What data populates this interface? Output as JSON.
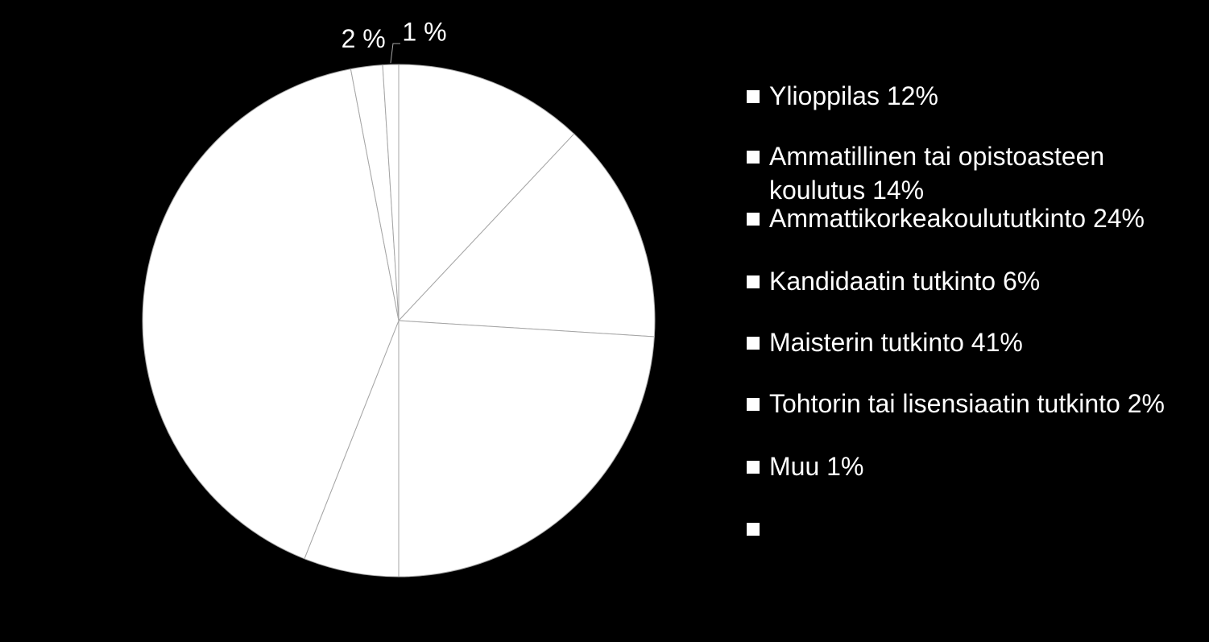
{
  "chart_data": {
    "type": "pie",
    "categories": [
      "Ylioppilas 12%",
      "Ammatillinen tai opistoasteen koulutus 14%",
      "Ammattikorkeakoulututkinto 24%",
      "Kandidaatin tutkinto 6%",
      "Maisterin tutkinto 41%",
      "Tohtorin tai lisensiaatin tutkinto 2%",
      "Muu 1%",
      null
    ],
    "values": [
      12,
      14,
      24,
      6,
      41,
      2,
      1,
      null
    ],
    "value_labels": [
      null,
      null,
      null,
      null,
      null,
      "2 %",
      "1 %",
      null
    ],
    "color": "#ffffff",
    "background": "#000000",
    "legend": "right"
  }
}
